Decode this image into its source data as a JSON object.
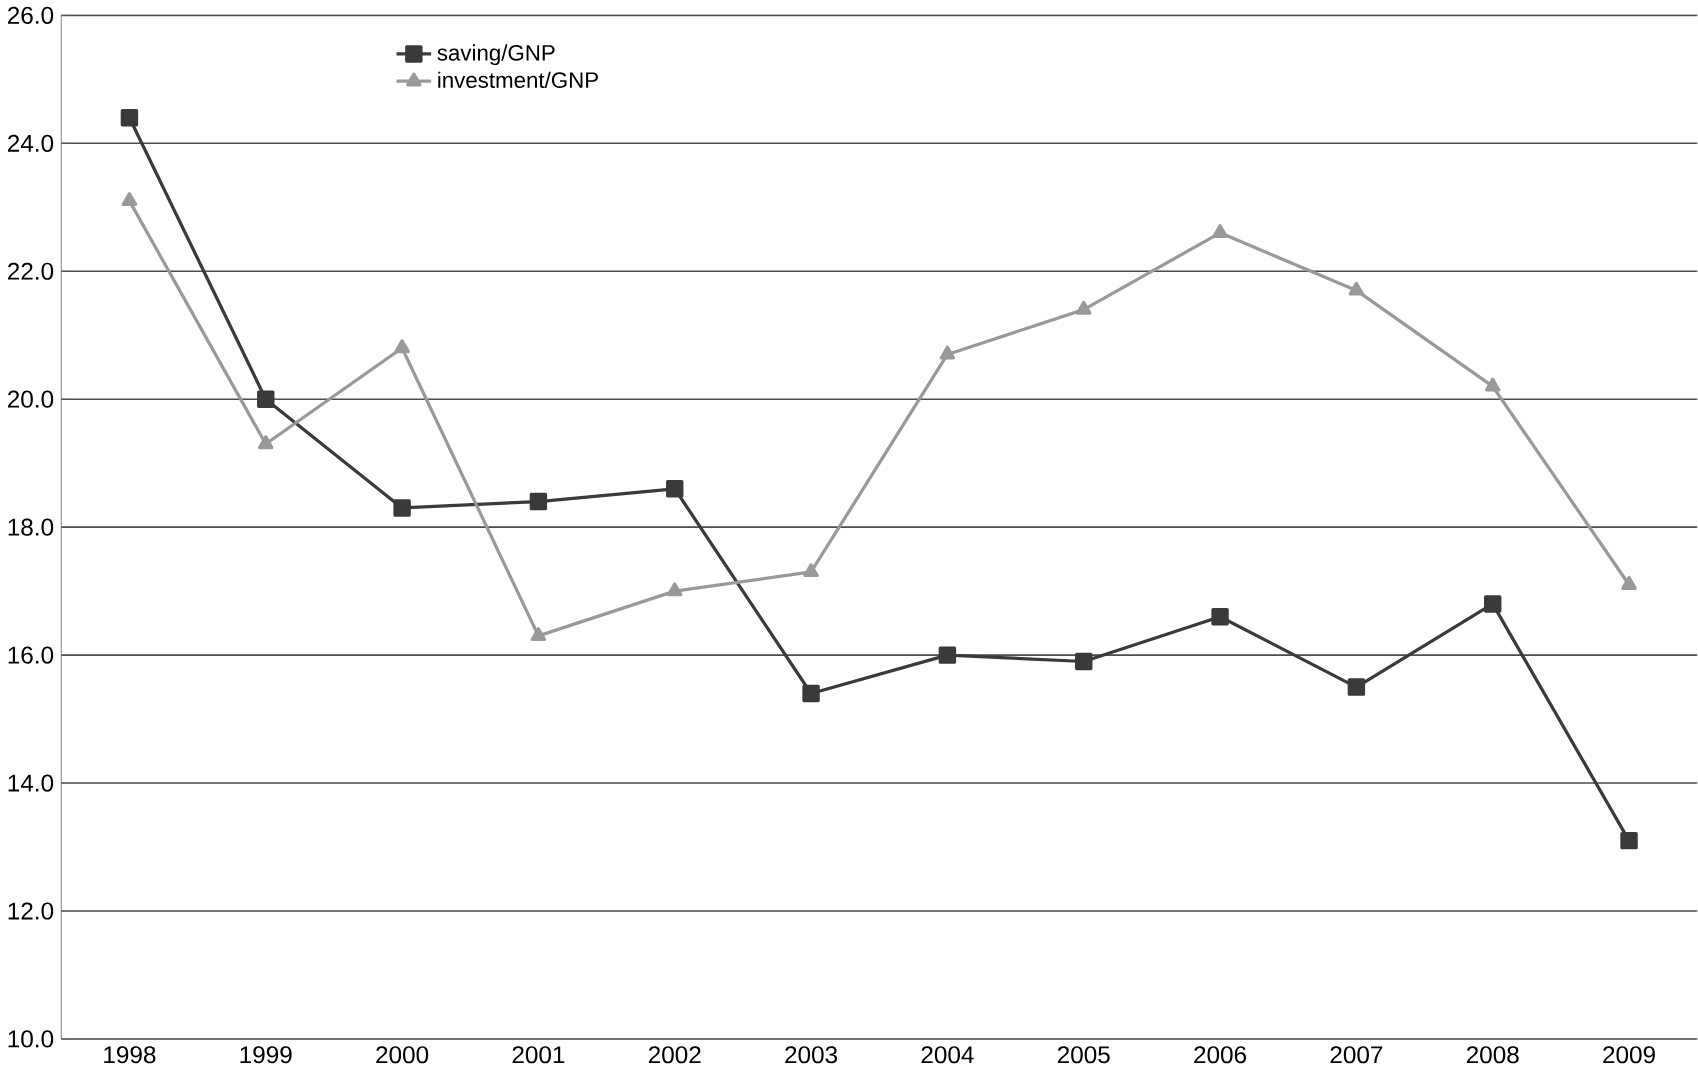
{
  "chart_data": {
    "type": "line",
    "categories": [
      "1998",
      "1999",
      "2000",
      "2001",
      "2002",
      "2003",
      "2004",
      "2005",
      "2006",
      "2007",
      "2008",
      "2009"
    ],
    "series": [
      {
        "name": "saving/GNP",
        "color": "#3a3a3a",
        "marker": "square",
        "values": [
          24.4,
          20.0,
          18.3,
          18.4,
          18.6,
          15.4,
          16.0,
          15.9,
          16.6,
          15.5,
          16.8,
          13.1
        ]
      },
      {
        "name": "investment/GNP",
        "color": "#999999",
        "marker": "triangle",
        "values": [
          23.1,
          19.3,
          20.8,
          16.3,
          17.0,
          17.3,
          20.7,
          21.4,
          22.6,
          21.7,
          20.2,
          17.1
        ]
      }
    ],
    "ylim": [
      10,
      26
    ],
    "yticks": [
      {
        "value": 10,
        "label": "10.0"
      },
      {
        "value": 12,
        "label": "12.0"
      },
      {
        "value": 14,
        "label": "14.0"
      },
      {
        "value": 16,
        "label": "16.0"
      },
      {
        "value": 18,
        "label": "18.0"
      },
      {
        "value": 20,
        "label": "20.0"
      },
      {
        "value": 22,
        "label": "22.0"
      },
      {
        "value": 24,
        "label": "24.0"
      },
      {
        "value": 26,
        "label": "26.0"
      }
    ],
    "grid": "y",
    "legend": "top left",
    "line_style": "solid"
  }
}
